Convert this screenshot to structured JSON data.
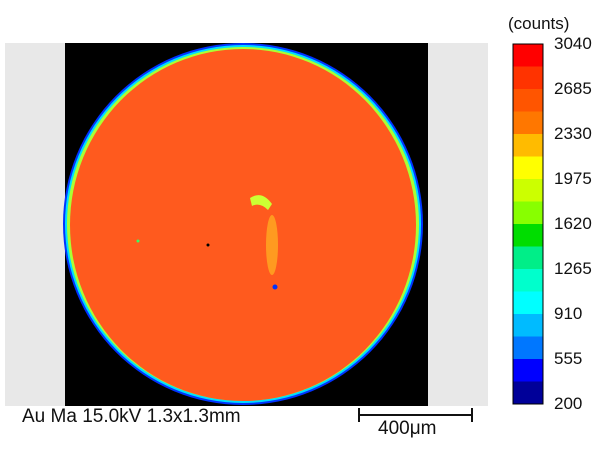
{
  "chart_data": {
    "type": "heatmap",
    "title": "Au Ma 15.0kV 1.3x1.3mm",
    "colorbar": {
      "unit_label": "(counts)",
      "range": [
        200,
        3040
      ],
      "tick_labels": [
        "3040",
        "2685",
        "2330",
        "1975",
        "1620",
        "1265",
        "910",
        "555",
        "200"
      ],
      "tick_values": [
        3040,
        2685,
        2330,
        1975,
        1620,
        1265,
        910,
        555,
        200
      ],
      "band_colors": [
        "#ff0000",
        "#ff3300",
        "#ff5500",
        "#ff7700",
        "#ffbb00",
        "#ffff00",
        "#ccff00",
        "#88ff00",
        "#00dd00",
        "#00ee88",
        "#00ffcc",
        "#00ffff",
        "#00bbff",
        "#0077ff",
        "#0000ff",
        "#000099"
      ]
    },
    "scale_bar": {
      "label": "400μm"
    },
    "sample_color": "#ff5a1e"
  }
}
